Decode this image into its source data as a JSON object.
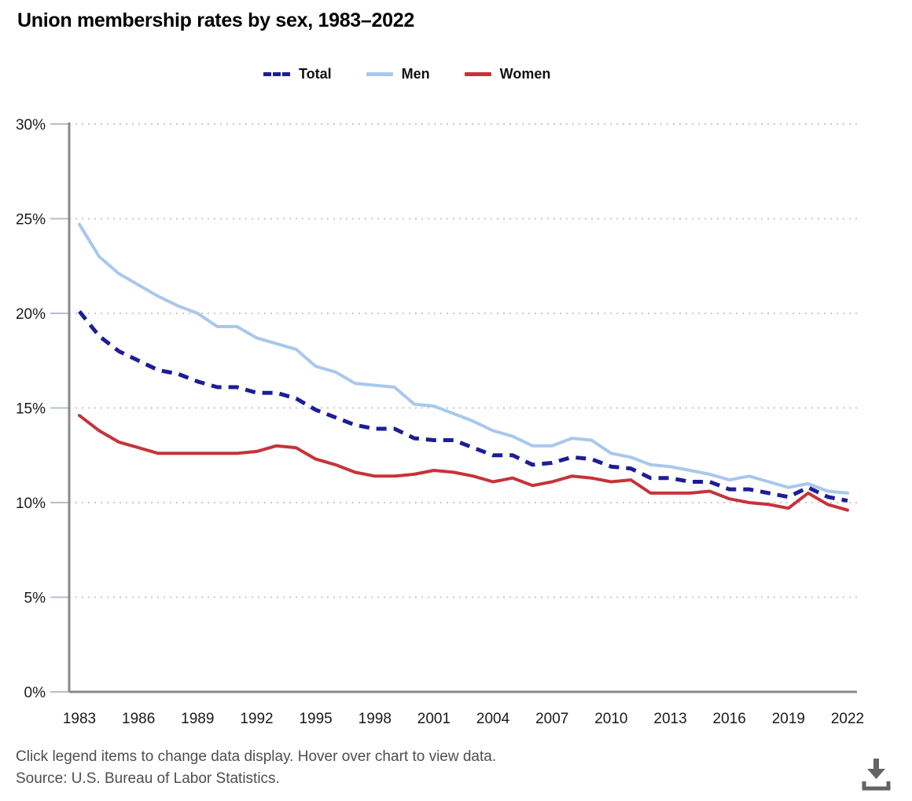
{
  "title": "Union membership rates by sex, 1983–2022",
  "legend": {
    "items": [
      {
        "label": "Total",
        "color": "#1d1d99",
        "style": "dashed"
      },
      {
        "label": "Men",
        "color": "#a8c8ec",
        "style": "solid"
      },
      {
        "label": "Women",
        "color": "#c63339",
        "style": "solid"
      }
    ]
  },
  "chart_data": {
    "type": "line",
    "title": "Union membership rates by sex, 1983–2022",
    "xlabel": "",
    "ylabel": "",
    "ylim": [
      0,
      30
    ],
    "grid": true,
    "legend_position": "top",
    "x": [
      1983,
      1984,
      1985,
      1986,
      1987,
      1988,
      1989,
      1990,
      1991,
      1992,
      1993,
      1994,
      1995,
      1996,
      1997,
      1998,
      1999,
      2000,
      2001,
      2002,
      2003,
      2004,
      2005,
      2006,
      2007,
      2008,
      2009,
      2010,
      2011,
      2012,
      2013,
      2014,
      2015,
      2016,
      2017,
      2018,
      2019,
      2020,
      2021,
      2022
    ],
    "xticks": [
      1983,
      1986,
      1989,
      1992,
      1995,
      1998,
      2001,
      2004,
      2007,
      2010,
      2013,
      2016,
      2019,
      2022
    ],
    "yticks": [
      {
        "value": 0,
        "label": "0%"
      },
      {
        "value": 5,
        "label": "5%"
      },
      {
        "value": 10,
        "label": "10%"
      },
      {
        "value": 15,
        "label": "15%"
      },
      {
        "value": 20,
        "label": "20%"
      },
      {
        "value": 25,
        "label": "25%"
      },
      {
        "value": 30,
        "label": "30%"
      }
    ],
    "series": [
      {
        "name": "Men",
        "color": "#a8c8ec",
        "dash": null,
        "width": 4,
        "values": [
          24.7,
          23.0,
          22.1,
          21.5,
          20.9,
          20.4,
          20.0,
          19.3,
          19.3,
          18.7,
          18.4,
          18.1,
          17.2,
          16.9,
          16.3,
          16.2,
          16.1,
          15.2,
          15.1,
          14.7,
          14.3,
          13.8,
          13.5,
          13.0,
          13.0,
          13.4,
          13.3,
          12.6,
          12.4,
          12.0,
          11.9,
          11.7,
          11.5,
          11.2,
          11.4,
          11.1,
          10.8,
          11.0,
          10.6,
          10.5
        ]
      },
      {
        "name": "Women",
        "color": "#c63339",
        "dash": null,
        "width": 4,
        "values": [
          14.6,
          13.8,
          13.2,
          12.9,
          12.6,
          12.6,
          12.6,
          12.6,
          12.6,
          12.7,
          13.0,
          12.9,
          12.3,
          12.0,
          11.6,
          11.4,
          11.4,
          11.5,
          11.7,
          11.6,
          11.4,
          11.1,
          11.3,
          10.9,
          11.1,
          11.4,
          11.3,
          11.1,
          11.2,
          10.5,
          10.5,
          10.5,
          10.6,
          10.2,
          10.0,
          9.9,
          9.7,
          10.5,
          9.9,
          9.6
        ]
      },
      {
        "name": "Total",
        "color": "#1d1d99",
        "dash": "13 9",
        "width": 5,
        "values": [
          20.1,
          18.8,
          18.0,
          17.5,
          17.0,
          16.8,
          16.4,
          16.1,
          16.1,
          15.8,
          15.8,
          15.5,
          14.9,
          14.5,
          14.1,
          13.9,
          13.9,
          13.4,
          13.3,
          13.3,
          12.9,
          12.5,
          12.5,
          12.0,
          12.1,
          12.4,
          12.3,
          11.9,
          11.8,
          11.3,
          11.3,
          11.1,
          11.1,
          10.7,
          10.7,
          10.5,
          10.3,
          10.8,
          10.3,
          10.1
        ]
      }
    ]
  },
  "footer": {
    "instructions": "Click legend items to change data display. Hover over chart to view data.",
    "source": "Source: U.S. Bureau of Labor Statistics."
  },
  "icons": {
    "download": "down-arrow-into-tray"
  },
  "colors": {
    "axis": "#8a8a8a",
    "gridline": "#c9c9c9",
    "tick": "#b3c0cc",
    "download_icon": "#646464"
  }
}
